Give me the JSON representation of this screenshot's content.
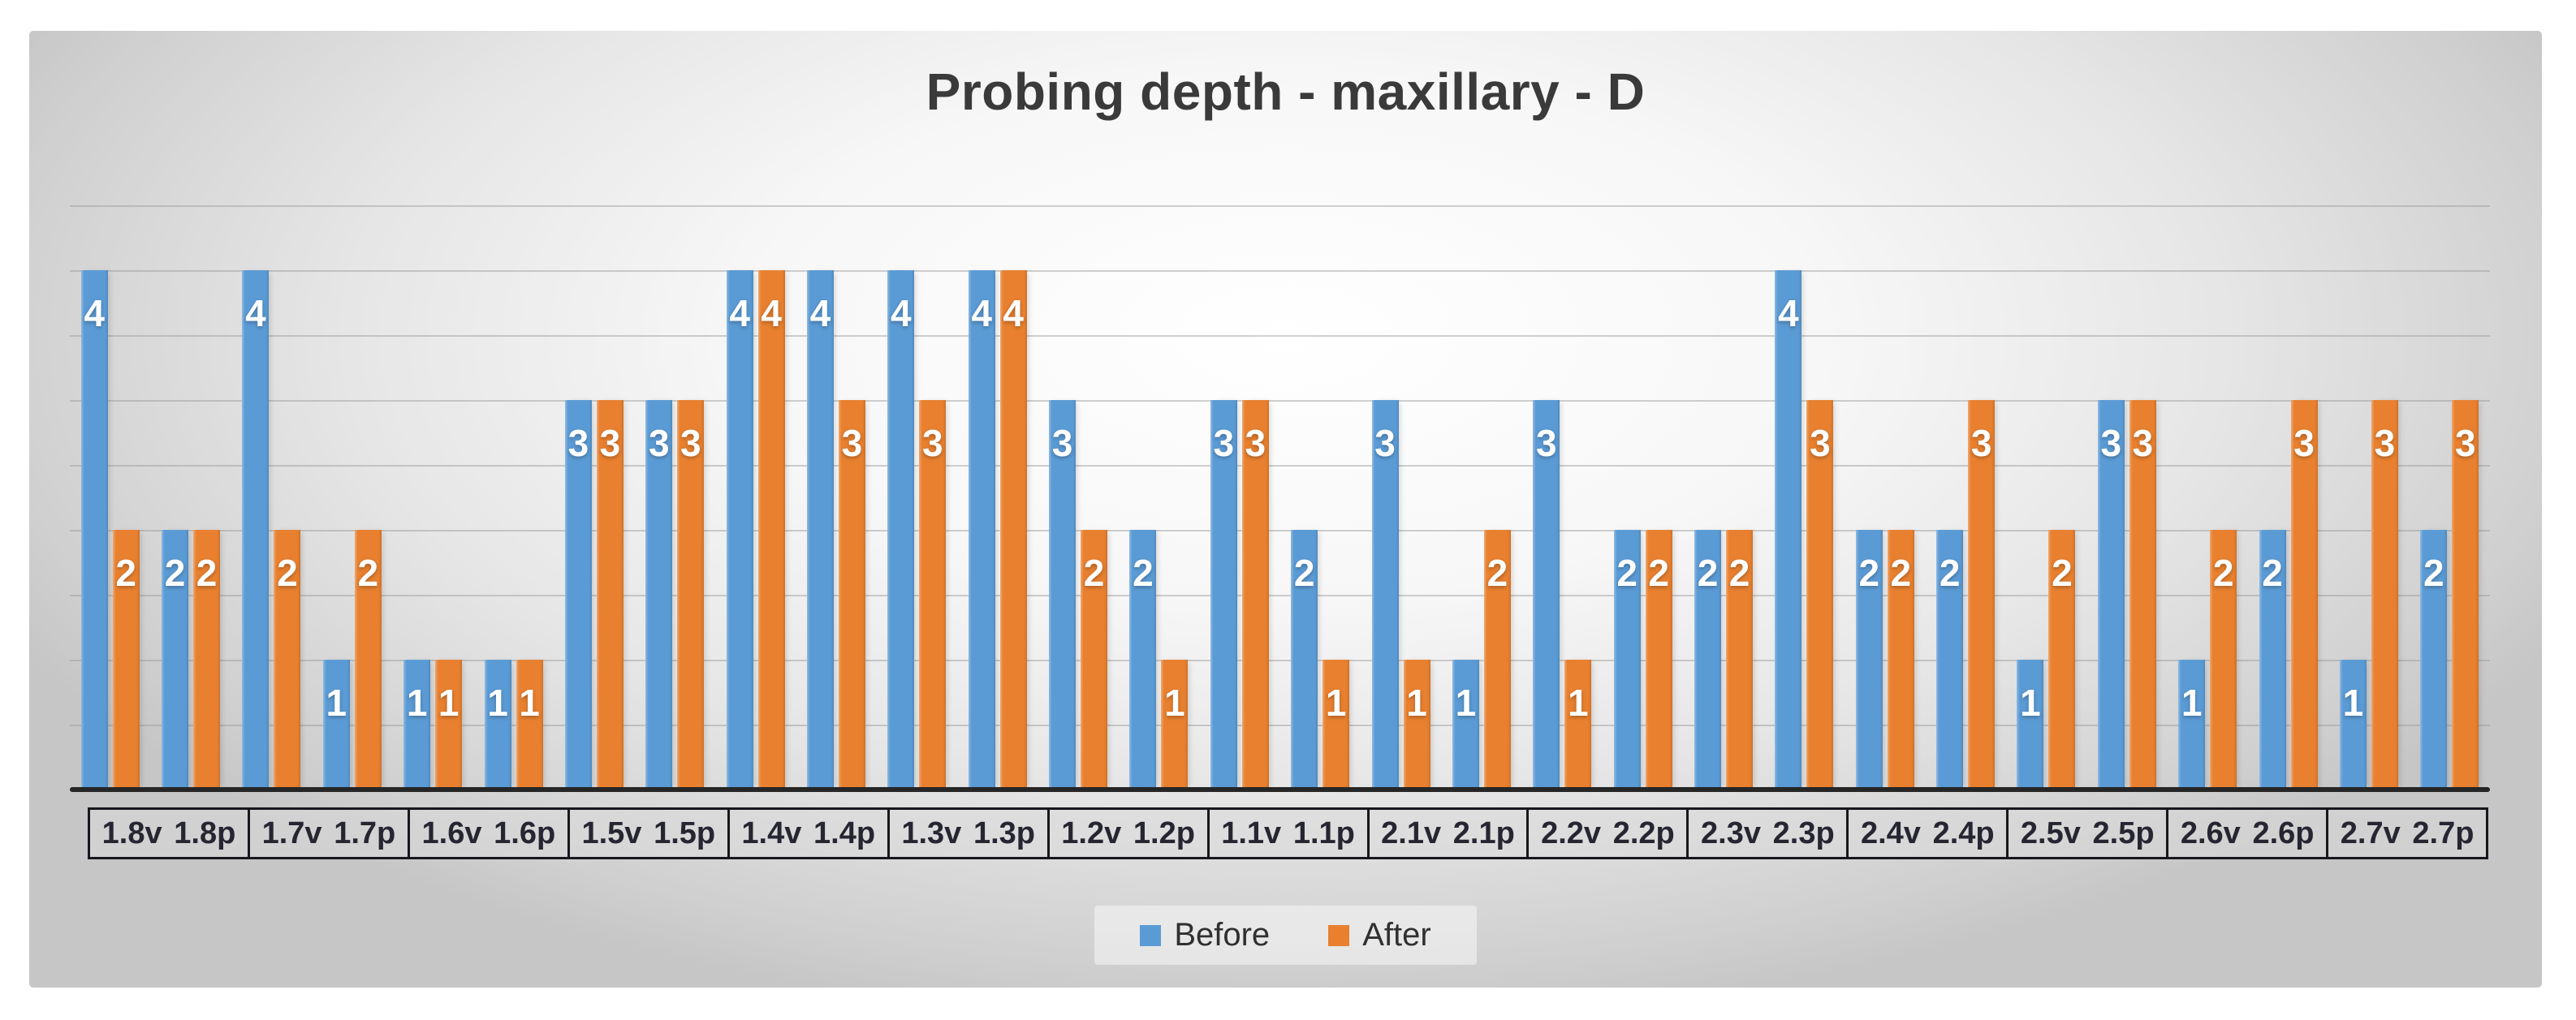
{
  "title": "Probing depth - maxillary - D",
  "legend": {
    "items": [
      {
        "label": "Before",
        "color": "#5B9BD5"
      },
      {
        "label": "After",
        "color": "#E8802F"
      }
    ],
    "position": "bottom"
  },
  "chart_data": {
    "type": "bar",
    "title": "Probing depth - maxillary - D",
    "categories": [
      "1.8v",
      "1.8p",
      "1.7v",
      "1.7p",
      "1.6v",
      "1.6p",
      "1.5v",
      "1.5p",
      "1.4v",
      "1.4p",
      "1.3v",
      "1.3p",
      "1.2v",
      "1.2p",
      "1.1v",
      "1.1p",
      "2.1v",
      "2.1p",
      "2.2v",
      "2.2p",
      "2.3v",
      "2.3p",
      "2.4v",
      "2.4p",
      "2.5v",
      "2.5p",
      "2.6v",
      "2.6p",
      "2.7v",
      "2.7p"
    ],
    "category_group_labels": [
      [
        "1.8v",
        "1.8p"
      ],
      [
        "1.7v",
        "1.7p"
      ],
      [
        "1.6v",
        "1.6p"
      ],
      [
        "1.5v",
        "1.5p"
      ],
      [
        "1.4v",
        "1.4p"
      ],
      [
        "1.3v",
        "1.3p"
      ],
      [
        "1.2v",
        "1.2p"
      ],
      [
        "1.1v",
        "1.1p"
      ],
      [
        "2.1v",
        "2.1p"
      ],
      [
        "2.2v",
        "2.2p"
      ],
      [
        "2.3v",
        "2.3p"
      ],
      [
        "2.4v",
        "2.4p"
      ],
      [
        "2.5v",
        "2.5p"
      ],
      [
        "2.6v",
        "2.6p"
      ],
      [
        "2.7v",
        "2.7p"
      ]
    ],
    "series": [
      {
        "name": "Before",
        "color": "#5B9BD5",
        "values": [
          4,
          2,
          4,
          1,
          1,
          1,
          3,
          3,
          4,
          4,
          4,
          4,
          3,
          2,
          3,
          2,
          3,
          1,
          3,
          2,
          2,
          4,
          2,
          2,
          1,
          3,
          1,
          2,
          1,
          2
        ]
      },
      {
        "name": "After",
        "color": "#E8802F",
        "values": [
          2,
          2,
          2,
          2,
          1,
          1,
          3,
          3,
          4,
          3,
          3,
          4,
          2,
          1,
          3,
          1,
          1,
          2,
          1,
          2,
          2,
          3,
          2,
          3,
          2,
          3,
          2,
          3,
          3,
          3
        ]
      }
    ],
    "xlabel": "",
    "ylabel": "",
    "ylim": [
      0,
      4.5
    ],
    "gridline_step": 0.5,
    "grid": "horizontal",
    "y_axis_tick_labels": false,
    "data_labels": "inside-end-white-bold",
    "legend_position": "bottom"
  }
}
